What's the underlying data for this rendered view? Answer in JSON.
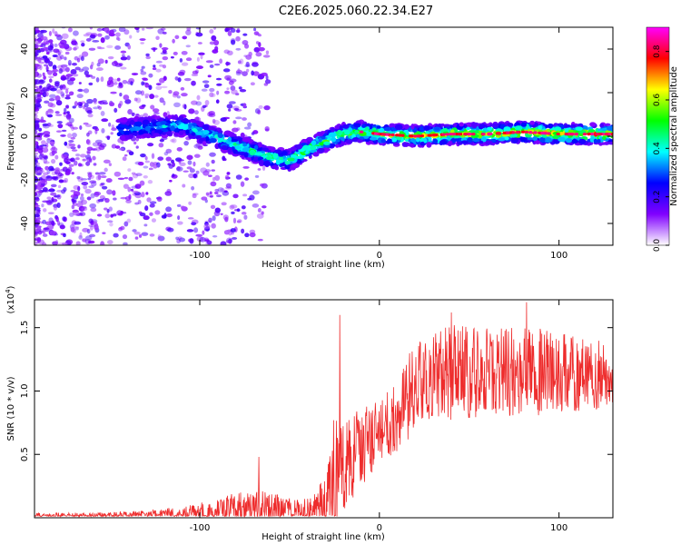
{
  "figure": {
    "title": "C2E6.2025.060.22.34.E27"
  },
  "colors": {
    "snr_line": "#ee2c2c",
    "axis": "#000000",
    "background": "#ffffff"
  },
  "chart_data": [
    {
      "type": "heatmap",
      "title": "C2E6.2025.060.22.34.E27",
      "xlabel": "Height of straight line (km)",
      "ylabel": "Frequency (Hz)",
      "xlim": [
        -192,
        130
      ],
      "ylim": [
        -50,
        50
      ],
      "x_ticks": [
        -100,
        0,
        100
      ],
      "y_ticks": [
        -40,
        -20,
        0,
        20,
        40
      ],
      "colorbar": {
        "label": "Normalized spectral amplitude",
        "range": [
          0,
          0.9
        ],
        "ticks": [
          0.0,
          0.2,
          0.4,
          0.6,
          0.8
        ],
        "colormap": [
          "#ffffff",
          "#8000ff",
          "#0000ff",
          "#00ffff",
          "#00ff00",
          "#ffff00",
          "#ff0000",
          "#ff00ff"
        ]
      },
      "ridge": {
        "x": [
          -145,
          -130,
          -110,
          -100,
          -90,
          -80,
          -70,
          -60,
          -50,
          -40,
          -30,
          -20,
          -10,
          0,
          20,
          40,
          60,
          80,
          100,
          130
        ],
        "y": [
          3,
          4,
          5,
          2,
          -1,
          -4,
          -7,
          -10,
          -11,
          -6,
          -2,
          1,
          2,
          1,
          0,
          1,
          1,
          2,
          1,
          1
        ]
      },
      "grid": false
    },
    {
      "type": "line",
      "xlabel": "Height of straight line (km)",
      "ylabel": "SNR (10 * v/v)",
      "y_exponent_label": "(x10",
      "y_exponent": "4",
      "y_exponent_close": ")",
      "xlim": [
        -192,
        130
      ],
      "ylim": [
        0,
        1.72
      ],
      "x_ticks": [
        -100,
        0,
        100
      ],
      "y_ticks": [
        0.5,
        1.0,
        1.5
      ],
      "series": [
        {
          "color": "#ee2c2c",
          "envelope": {
            "x": [
              -192,
              -160,
              -130,
              -110,
              -90,
              -80,
              -70,
              -60,
              -50,
              -40,
              -35,
              -30,
              -27,
              -25,
              -22,
              -20,
              -15,
              -10,
              -5,
              0,
              5,
              10,
              15,
              20,
              30,
              40,
              60,
              80,
              100,
              130
            ],
            "base": [
              0.01,
              0.01,
              0.02,
              0.03,
              0.05,
              0.06,
              0.07,
              0.06,
              0.06,
              0.05,
              0.08,
              0.15,
              0.22,
              0.3,
              0.35,
              0.4,
              0.5,
              0.55,
              0.6,
              0.68,
              0.75,
              0.8,
              0.9,
              1.05,
              1.1,
              1.15,
              1.15,
              1.15,
              1.15,
              1.12
            ],
            "amp": [
              0.03,
              0.03,
              0.04,
              0.06,
              0.1,
              0.14,
              0.18,
              0.14,
              0.1,
              0.1,
              0.14,
              0.25,
              0.4,
              0.55,
              0.35,
              0.35,
              0.35,
              0.3,
              0.3,
              0.25,
              0.28,
              0.3,
              0.35,
              0.35,
              0.35,
              0.38,
              0.35,
              0.35,
              0.33,
              0.25
            ]
          },
          "spikes": [
            {
              "x": -22,
              "y": 1.6
            },
            {
              "x": 40,
              "y": 1.62
            },
            {
              "x": 82,
              "y": 1.7
            },
            {
              "x": -67,
              "y": 0.48
            }
          ]
        }
      ],
      "grid": false
    }
  ]
}
